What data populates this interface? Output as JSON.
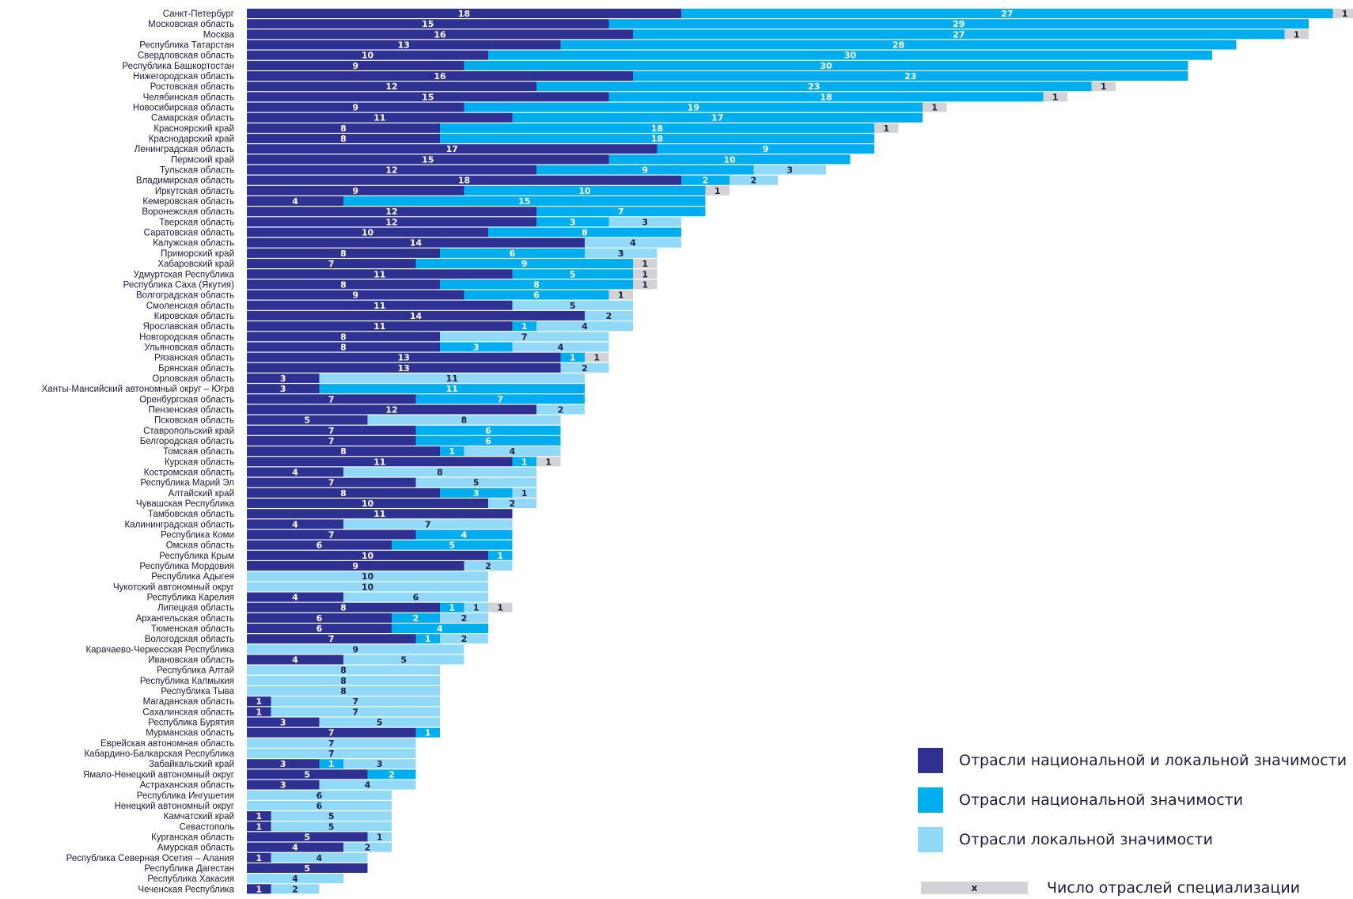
{
  "chart_data": {
    "type": "bar",
    "orientation": "horizontal",
    "stacked": true,
    "categories": [
      "Санкт-Петербург",
      "Московская область",
      "Москва",
      "Республика Татарстан",
      "Свердловская область",
      "Республика Башкортостан",
      "Нижегородская область",
      "Ростовская область",
      "Челябинская область",
      "Новосибирская область",
      "Самарская область",
      "Красноярский край",
      "Краснодарский край",
      "Ленинградская область",
      "Пермский край",
      "Тульская область",
      "Владимирская область",
      "Иркутская область",
      "Кемеровская область",
      "Воронежская область",
      "Тверская область",
      "Саратовская область",
      "Калужская область",
      "Приморский край",
      "Хабаровский край",
      "Удмуртская Республика",
      "Республика Саха (Якутия)",
      "Волгоградская область",
      "Смоленская область",
      "Кировская область",
      "Ярославская область",
      "Новгородская область",
      "Ульяновская область",
      "Рязанская область",
      "Брянская область",
      "Орловская область",
      "Ханты-Мансийский автономный округ – Югра",
      "Оренбургская область",
      "Пензенская область",
      "Псковская область",
      "Ставропольский край",
      "Белгородская область",
      "Томская область",
      "Курская область",
      "Костромская область",
      "Республика Марий Эл",
      "Алтайский край",
      "Чувашская Республика",
      "Тамбовская область",
      "Калининградская область",
      "Республика Коми",
      "Омская область",
      "Республика Крым",
      "Республика Мордовия",
      "Республика Адыгея",
      "Чукотский автономный округ",
      "Республика Карелия",
      "Липецкая область",
      "Архангельская область",
      "Тюменская область",
      "Вологодская область",
      "Карачаево-Черкесская Республика",
      "Ивановская область",
      "Республика Алтай",
      "Республика Калмыкия",
      "Республика Тыва",
      "Магаданская область",
      "Сахалинская область",
      "Республика Бурятия",
      "Мурманская область",
      "Еврейская автономная область",
      "Кабардино-Балкарская Республика",
      "Забайкальский край",
      "Ямало-Ненецкий автономный округ",
      "Астраханская область",
      "Республика Ингушетия",
      "Ненецкий автономный округ",
      "Камчатский край",
      "Севастополь",
      "Курганская область",
      "Амурская область",
      "Республика Северная Осетия – Алания",
      "Республика Дагестан",
      "Республика Хакасия",
      "Чеченская Республика"
    ],
    "series": [
      {
        "name": "Отрасли национальной и локальной значимости",
        "color": "#2e3192",
        "values": [
          18,
          15,
          16,
          13,
          10,
          9,
          16,
          12,
          15,
          9,
          11,
          8,
          8,
          17,
          15,
          12,
          18,
          9,
          4,
          12,
          12,
          10,
          14,
          8,
          7,
          11,
          8,
          9,
          11,
          14,
          11,
          8,
          8,
          13,
          13,
          3,
          3,
          7,
          12,
          5,
          7,
          7,
          8,
          11,
          4,
          7,
          8,
          10,
          11,
          4,
          7,
          6,
          10,
          9,
          0,
          0,
          4,
          8,
          6,
          6,
          7,
          0,
          4,
          0,
          0,
          0,
          1,
          1,
          3,
          7,
          0,
          0,
          3,
          5,
          3,
          0,
          0,
          1,
          1,
          5,
          4,
          1,
          5,
          0,
          1
        ]
      },
      {
        "name": "Отрасли национальной значимости",
        "color": "#00aeef",
        "values": [
          27,
          29,
          27,
          28,
          30,
          30,
          23,
          23,
          18,
          19,
          17,
          18,
          18,
          9,
          10,
          9,
          2,
          10,
          15,
          7,
          3,
          8,
          0,
          6,
          9,
          5,
          8,
          6,
          0,
          0,
          1,
          0,
          3,
          1,
          0,
          0,
          11,
          7,
          0,
          0,
          6,
          6,
          1,
          1,
          0,
          0,
          3,
          0,
          0,
          0,
          4,
          5,
          1,
          0,
          0,
          0,
          0,
          1,
          2,
          4,
          1,
          0,
          0,
          0,
          0,
          0,
          0,
          0,
          0,
          1,
          0,
          0,
          1,
          2,
          0,
          0,
          0,
          0,
          0,
          0,
          0,
          0,
          0,
          0,
          0
        ]
      },
      {
        "name": "Отрасли локальной значимости",
        "color": "#92d9f8",
        "values": [
          0,
          0,
          0,
          0,
          0,
          0,
          0,
          0,
          0,
          0,
          0,
          0,
          0,
          0,
          0,
          3,
          2,
          0,
          0,
          0,
          3,
          0,
          4,
          3,
          0,
          0,
          0,
          0,
          5,
          2,
          4,
          7,
          4,
          0,
          2,
          11,
          0,
          0,
          2,
          8,
          0,
          0,
          4,
          0,
          8,
          5,
          1,
          2,
          0,
          7,
          0,
          0,
          0,
          2,
          10,
          10,
          6,
          1,
          2,
          0,
          2,
          9,
          5,
          8,
          8,
          8,
          7,
          7,
          5,
          0,
          7,
          7,
          3,
          0,
          4,
          6,
          6,
          5,
          5,
          1,
          2,
          4,
          0,
          4,
          2
        ]
      },
      {
        "name": "Число отраслей специализации",
        "color": "#d1d3d6",
        "values": [
          1,
          0,
          1,
          0,
          0,
          0,
          0,
          1,
          1,
          1,
          0,
          1,
          0,
          0,
          0,
          0,
          0,
          1,
          0,
          0,
          0,
          0,
          0,
          0,
          1,
          1,
          1,
          1,
          0,
          0,
          0,
          0,
          0,
          1,
          0,
          0,
          0,
          0,
          0,
          0,
          0,
          0,
          0,
          1,
          0,
          0,
          0,
          0,
          0,
          0,
          0,
          0,
          0,
          0,
          0,
          0,
          0,
          1,
          0,
          0,
          0,
          0,
          0,
          0,
          0,
          0,
          0,
          0,
          0,
          0,
          0,
          0,
          0,
          0,
          0,
          0,
          0,
          0,
          0,
          0,
          0,
          0,
          0,
          0,
          0
        ]
      }
    ],
    "legend_placement": "bottom-right",
    "grid": false,
    "xlim": [
      0,
      46
    ]
  },
  "legend": {
    "items": [
      {
        "label": "Отрасли национальной и локальной значимости",
        "color": "#2e3192"
      },
      {
        "label": "Отрасли национальной значимости",
        "color": "#00aeef"
      },
      {
        "label": "Отрасли локальной значимости",
        "color": "#92d9f8"
      }
    ],
    "total_marker": "x",
    "total_label": "Число отраслей специализации"
  }
}
